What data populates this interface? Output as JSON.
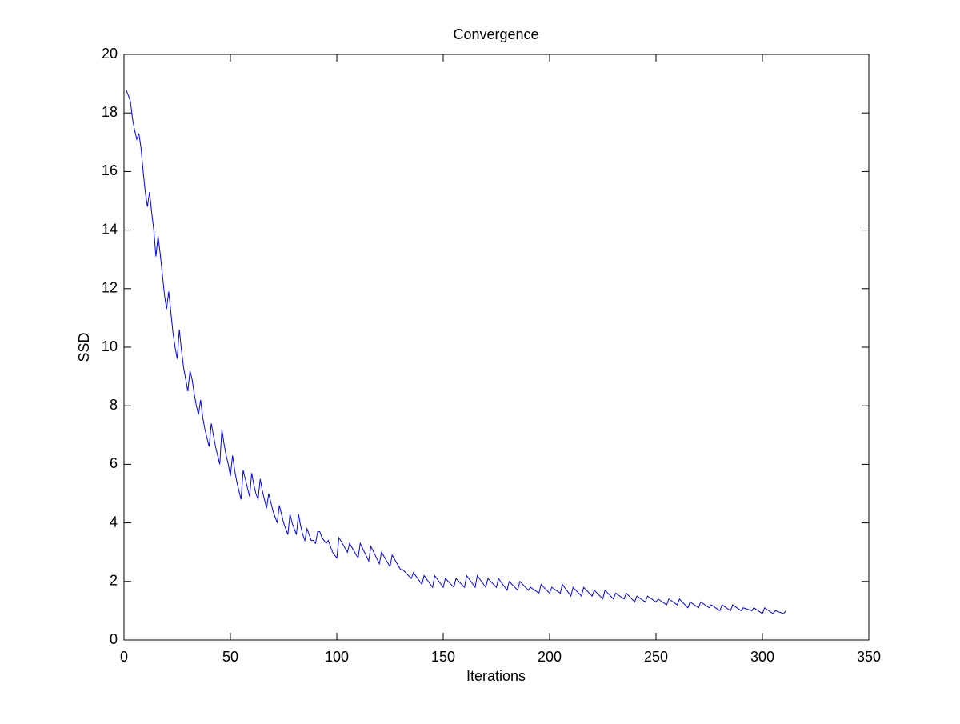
{
  "chart_data": {
    "type": "line",
    "title": "Convergence",
    "x_label": "Iterations",
    "y_label": "SSD",
    "xlim": [
      0,
      350
    ],
    "xticks": [
      0,
      50,
      100,
      150,
      200,
      250,
      300,
      350
    ],
    "ylim": [
      0,
      20
    ],
    "yticks": [
      0,
      2,
      4,
      6,
      8,
      10,
      12,
      14,
      16,
      18,
      20
    ],
    "grid": false,
    "series": [
      {
        "color": "#0000ff",
        "x": [
          1,
          2,
          3,
          4,
          5,
          6,
          7,
          8,
          9,
          10,
          11,
          12,
          13,
          14,
          15,
          16,
          17,
          18,
          19,
          20,
          21,
          22,
          23,
          24,
          25,
          26,
          27,
          28,
          29,
          30,
          31,
          32,
          33,
          34,
          35,
          36,
          37,
          38,
          39,
          40,
          41,
          42,
          43,
          44,
          45,
          46,
          47,
          48,
          49,
          50,
          51,
          52,
          53,
          54,
          55,
          56,
          57,
          58,
          59,
          60,
          61,
          62,
          63,
          64,
          65,
          66,
          67,
          68,
          69,
          70,
          71,
          72,
          73,
          74,
          75,
          76,
          77,
          78,
          79,
          80,
          81,
          82,
          83,
          84,
          85,
          86,
          87,
          88,
          89,
          90,
          91,
          92,
          93,
          94,
          95,
          96,
          97,
          98,
          99,
          100,
          101,
          105,
          106,
          110,
          111,
          115,
          116,
          120,
          121,
          125,
          126,
          130,
          131,
          135,
          136,
          140,
          141,
          145,
          146,
          150,
          151,
          155,
          156,
          160,
          161,
          165,
          166,
          170,
          171,
          175,
          176,
          180,
          181,
          185,
          186,
          190,
          191,
          195,
          196,
          200,
          201,
          205,
          206,
          210,
          211,
          215,
          216,
          220,
          221,
          225,
          226,
          230,
          231,
          235,
          236,
          240,
          241,
          245,
          246,
          250,
          251,
          255,
          256,
          260,
          261,
          265,
          266,
          270,
          271,
          275,
          276,
          280,
          281,
          285,
          286,
          290,
          291,
          295,
          296,
          300,
          301,
          305,
          306,
          310,
          311
        ],
        "values": [
          18.8,
          18.6,
          18.4,
          17.8,
          17.4,
          17.1,
          17.3,
          16.8,
          16.0,
          15.3,
          14.8,
          15.3,
          14.6,
          14.0,
          13.1,
          13.8,
          13.2,
          12.5,
          11.8,
          11.3,
          11.9,
          11.2,
          10.5,
          10.0,
          9.6,
          10.6,
          9.9,
          9.3,
          8.9,
          8.5,
          9.2,
          8.9,
          8.4,
          8.0,
          7.7,
          8.2,
          7.6,
          7.2,
          6.9,
          6.6,
          7.4,
          7.0,
          6.6,
          6.3,
          6.0,
          7.2,
          6.7,
          6.3,
          6.0,
          5.6,
          6.3,
          5.8,
          5.4,
          5.1,
          4.8,
          5.8,
          5.5,
          5.2,
          4.9,
          5.7,
          5.3,
          5.0,
          4.8,
          5.5,
          5.1,
          4.8,
          4.5,
          5.0,
          4.7,
          4.4,
          4.2,
          4.0,
          4.6,
          4.3,
          4.0,
          3.8,
          3.6,
          4.3,
          4.0,
          3.8,
          3.6,
          4.3,
          3.9,
          3.6,
          3.4,
          3.8,
          3.6,
          3.4,
          3.4,
          3.3,
          3.7,
          3.7,
          3.5,
          3.4,
          3.3,
          3.4,
          3.2,
          3.0,
          2.9,
          2.8,
          3.5,
          3.0,
          3.3,
          2.8,
          3.3,
          2.7,
          3.2,
          2.6,
          3.0,
          2.5,
          2.9,
          2.4,
          2.4,
          2.1,
          2.3,
          1.9,
          2.2,
          1.8,
          2.2,
          1.8,
          2.1,
          1.8,
          2.1,
          1.8,
          2.2,
          1.8,
          2.2,
          1.8,
          2.1,
          1.8,
          2.1,
          1.7,
          2.0,
          1.7,
          2.0,
          1.7,
          1.8,
          1.6,
          1.9,
          1.6,
          1.8,
          1.6,
          1.9,
          1.5,
          1.8,
          1.5,
          1.8,
          1.5,
          1.7,
          1.4,
          1.7,
          1.4,
          1.6,
          1.4,
          1.6,
          1.3,
          1.5,
          1.3,
          1.5,
          1.3,
          1.4,
          1.2,
          1.4,
          1.2,
          1.4,
          1.1,
          1.3,
          1.1,
          1.3,
          1.1,
          1.2,
          1.0,
          1.2,
          1.0,
          1.2,
          1.0,
          1.1,
          1.0,
          1.1,
          0.9,
          1.1,
          0.9,
          1.0,
          0.9,
          1.0
        ]
      }
    ]
  }
}
